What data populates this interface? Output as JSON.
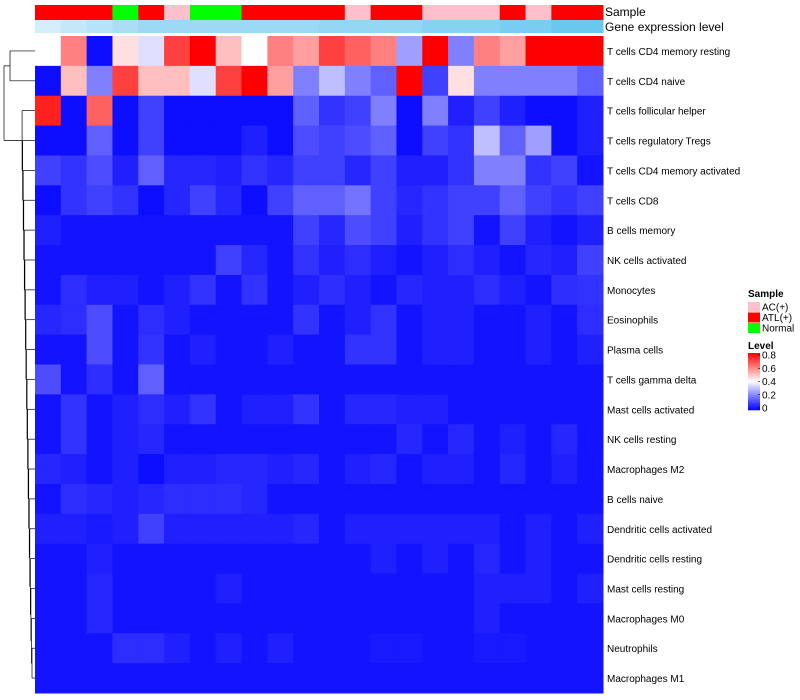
{
  "chart_data": {
    "type": "heatmap",
    "title": "",
    "annotation_tracks": [
      "Sample",
      "Gene expression level"
    ],
    "sample_track": [
      "ATL(+)",
      "ATL(+)",
      "ATL(+)",
      "Normal",
      "ATL(+)",
      "AC(+)",
      "Normal",
      "Normal",
      "ATL(+)",
      "ATL(+)",
      "ATL(+)",
      "ATL(+)",
      "AC(+)",
      "ATL(+)",
      "ATL(+)",
      "AC(+)",
      "AC(+)",
      "AC(+)",
      "ATL(+)",
      "AC(+)",
      "ATL(+)",
      "ATL(+)"
    ],
    "expression_track": [
      0.15,
      0.25,
      0.35,
      0.45,
      0.55,
      0.55,
      0.55,
      0.55,
      0.55,
      0.55,
      0.55,
      0.6,
      0.6,
      0.6,
      0.6,
      0.7,
      0.7,
      0.7,
      0.8,
      0.8,
      0.9,
      0.9
    ],
    "rows": [
      "T cells CD4 memory resting",
      "T cells CD4 naive",
      "T cells follicular helper",
      "T cells regulatory  Tregs",
      "T cells CD4 memory activated",
      "T cells CD8",
      "B cells memory",
      "NK cells activated",
      "Monocytes",
      "Eosinophils",
      "Plasma cells",
      "T cells gamma delta",
      "Mast cells activated",
      "NK cells resting",
      "Macrophages M2",
      "B cells naive",
      "Dendritic cells activated",
      "Dendritic cells resting",
      "Mast cells resting",
      "Macrophages M0",
      "Neutrophils",
      "Macrophages M1"
    ],
    "values": [
      [
        0.4,
        0.6,
        0.02,
        0.45,
        0.35,
        0.7,
        0.8,
        0.5,
        0.4,
        0.6,
        0.55,
        0.7,
        0.65,
        0.6,
        0.25,
        0.8,
        0.2,
        0.6,
        0.55,
        0.8,
        0.8,
        0.8
      ],
      [
        0.02,
        0.5,
        0.2,
        0.7,
        0.5,
        0.5,
        0.35,
        0.7,
        0.8,
        0.55,
        0.2,
        0.3,
        0.2,
        0.15,
        0.8,
        0.1,
        0.45,
        0.2,
        0.2,
        0.2,
        0.2,
        0.15
      ],
      [
        0.75,
        0.02,
        0.65,
        0.02,
        0.1,
        0.02,
        0.02,
        0.02,
        0.02,
        0.02,
        0.15,
        0.08,
        0.1,
        0.2,
        0.02,
        0.2,
        0.05,
        0.1,
        0.05,
        0.02,
        0.02,
        0.05
      ],
      [
        0.02,
        0.02,
        0.15,
        0.02,
        0.1,
        0.02,
        0.02,
        0.02,
        0.05,
        0.02,
        0.12,
        0.1,
        0.12,
        0.15,
        0.02,
        0.1,
        0.08,
        0.3,
        0.15,
        0.25,
        0.02,
        0.05
      ],
      [
        0.1,
        0.08,
        0.12,
        0.05,
        0.15,
        0.06,
        0.06,
        0.05,
        0.08,
        0.06,
        0.1,
        0.1,
        0.06,
        0.1,
        0.05,
        0.05,
        0.08,
        0.2,
        0.2,
        0.08,
        0.1,
        0.03
      ],
      [
        0.02,
        0.08,
        0.1,
        0.08,
        0.02,
        0.06,
        0.1,
        0.06,
        0.02,
        0.1,
        0.15,
        0.15,
        0.18,
        0.1,
        0.06,
        0.08,
        0.1,
        0.1,
        0.15,
        0.1,
        0.08,
        0.1
      ],
      [
        0.05,
        0.03,
        0.03,
        0.03,
        0.03,
        0.03,
        0.03,
        0.03,
        0.03,
        0.03,
        0.1,
        0.06,
        0.12,
        0.1,
        0.05,
        0.08,
        0.1,
        0.03,
        0.1,
        0.05,
        0.03,
        0.05
      ],
      [
        0.03,
        0.03,
        0.03,
        0.03,
        0.03,
        0.03,
        0.03,
        0.1,
        0.06,
        0.03,
        0.08,
        0.05,
        0.07,
        0.05,
        0.03,
        0.05,
        0.07,
        0.05,
        0.03,
        0.06,
        0.05,
        0.1
      ],
      [
        0.03,
        0.07,
        0.05,
        0.05,
        0.03,
        0.05,
        0.08,
        0.03,
        0.08,
        0.03,
        0.05,
        0.07,
        0.05,
        0.03,
        0.06,
        0.05,
        0.05,
        0.07,
        0.05,
        0.03,
        0.07,
        0.08
      ],
      [
        0.06,
        0.07,
        0.12,
        0.03,
        0.07,
        0.05,
        0.03,
        0.03,
        0.03,
        0.03,
        0.08,
        0.03,
        0.05,
        0.08,
        0.03,
        0.05,
        0.05,
        0.03,
        0.03,
        0.05,
        0.03,
        0.07
      ],
      [
        0.03,
        0.03,
        0.12,
        0.03,
        0.08,
        0.03,
        0.05,
        0.03,
        0.03,
        0.05,
        0.03,
        0.03,
        0.08,
        0.08,
        0.03,
        0.05,
        0.05,
        0.03,
        0.03,
        0.05,
        0.03,
        0.05
      ],
      [
        0.12,
        0.03,
        0.07,
        0.03,
        0.15,
        0.03,
        0.03,
        0.03,
        0.03,
        0.03,
        0.03,
        0.03,
        0.03,
        0.03,
        0.03,
        0.03,
        0.03,
        0.03,
        0.03,
        0.03,
        0.03,
        0.03
      ],
      [
        0.03,
        0.08,
        0.03,
        0.05,
        0.07,
        0.05,
        0.08,
        0.03,
        0.05,
        0.05,
        0.08,
        0.03,
        0.06,
        0.06,
        0.05,
        0.05,
        0.03,
        0.03,
        0.03,
        0.03,
        0.03,
        0.03
      ],
      [
        0.03,
        0.08,
        0.03,
        0.05,
        0.06,
        0.03,
        0.03,
        0.03,
        0.03,
        0.03,
        0.03,
        0.03,
        0.03,
        0.03,
        0.06,
        0.03,
        0.06,
        0.03,
        0.05,
        0.03,
        0.06,
        0.03
      ],
      [
        0.06,
        0.05,
        0.03,
        0.05,
        0.02,
        0.05,
        0.05,
        0.06,
        0.06,
        0.05,
        0.06,
        0.03,
        0.05,
        0.06,
        0.03,
        0.05,
        0.05,
        0.03,
        0.06,
        0.03,
        0.05,
        0.03
      ],
      [
        0.03,
        0.07,
        0.06,
        0.05,
        0.06,
        0.07,
        0.07,
        0.07,
        0.06,
        0.03,
        0.03,
        0.03,
        0.03,
        0.03,
        0.03,
        0.03,
        0.03,
        0.03,
        0.03,
        0.03,
        0.03,
        0.03
      ],
      [
        0.05,
        0.05,
        0.04,
        0.05,
        0.1,
        0.05,
        0.05,
        0.05,
        0.05,
        0.05,
        0.06,
        0.03,
        0.05,
        0.05,
        0.05,
        0.05,
        0.05,
        0.05,
        0.03,
        0.05,
        0.03,
        0.05
      ],
      [
        0.03,
        0.03,
        0.05,
        0.03,
        0.03,
        0.03,
        0.03,
        0.03,
        0.03,
        0.03,
        0.03,
        0.03,
        0.03,
        0.05,
        0.03,
        0.05,
        0.03,
        0.06,
        0.03,
        0.05,
        0.03,
        0.03
      ],
      [
        0.03,
        0.03,
        0.06,
        0.03,
        0.03,
        0.03,
        0.03,
        0.05,
        0.03,
        0.03,
        0.03,
        0.03,
        0.03,
        0.03,
        0.03,
        0.03,
        0.03,
        0.05,
        0.05,
        0.05,
        0.03,
        0.05
      ],
      [
        0.03,
        0.03,
        0.06,
        0.03,
        0.03,
        0.03,
        0.03,
        0.03,
        0.03,
        0.03,
        0.03,
        0.03,
        0.03,
        0.03,
        0.03,
        0.03,
        0.03,
        0.05,
        0.03,
        0.03,
        0.03,
        0.03
      ],
      [
        0.03,
        0.03,
        0.03,
        0.07,
        0.07,
        0.05,
        0.03,
        0.05,
        0.03,
        0.05,
        0.03,
        0.03,
        0.03,
        0.04,
        0.04,
        0.03,
        0.03,
        0.04,
        0.04,
        0.03,
        0.03,
        0.03
      ],
      [
        0.03,
        0.03,
        0.03,
        0.03,
        0.03,
        0.03,
        0.03,
        0.03,
        0.03,
        0.03,
        0.03,
        0.03,
        0.03,
        0.03,
        0.03,
        0.03,
        0.03,
        0.03,
        0.03,
        0.03,
        0.03,
        0.03
      ]
    ],
    "legend_sample": {
      "title": "Sample",
      "entries": [
        {
          "label": "AC(+)",
          "color": "#ffc0cb"
        },
        {
          "label": "ATL(+)",
          "color": "#ff0000"
        },
        {
          "label": "Normal",
          "color": "#00ff00"
        }
      ]
    },
    "legend_level": {
      "title": "Level",
      "ticks": [
        "0.8",
        "0.6",
        "0.4",
        "0.2",
        "0"
      ],
      "range": [
        0,
        0.8
      ]
    },
    "color_scale": {
      "low": "#0000ff",
      "mid": "#ffffff",
      "high": "#ff0000",
      "min": 0,
      "max": 0.8,
      "midpoint": 0.4
    },
    "expression_colors": {
      "low": "#e8f4fb",
      "high": "#5cc3ee"
    }
  }
}
